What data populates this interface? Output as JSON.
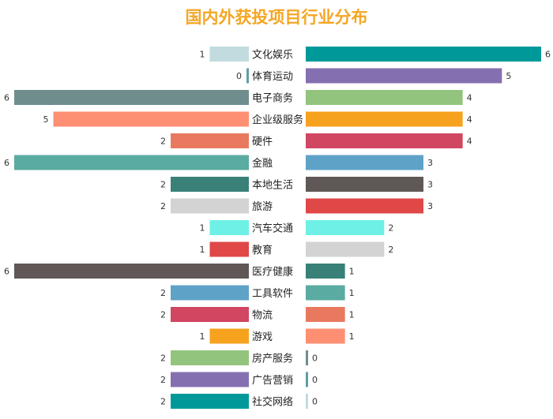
{
  "chart_data": {
    "type": "bar",
    "title": "国内外获投项目行业分布",
    "left_series": {
      "categories": [
        "文化娱乐",
        "体育运动",
        "电子商务",
        "企业级服务",
        "硬件",
        "金融",
        "本地生活",
        "旅游",
        "汽车交通",
        "教育",
        "医疗健康",
        "工具软件",
        "物流",
        "游戏",
        "房产服务",
        "广告营销",
        "社交网络"
      ],
      "values": [
        1,
        0,
        6,
        5,
        2,
        6,
        2,
        2,
        1,
        1,
        6,
        2,
        2,
        1,
        2,
        2,
        2
      ],
      "colors": [
        "#c1dbde",
        "#5f9ea0",
        "#708d8d",
        "#fe8f73",
        "#e8795f",
        "#5aaba1",
        "#398078",
        "#d3d3d3",
        "#6ef0e6",
        "#e04848",
        "#5f5856",
        "#5fa2c8",
        "#d14661",
        "#f7a21f",
        "#93c47d",
        "#8470b0",
        "#009999"
      ]
    },
    "right_series": {
      "categories": [
        "文化娱乐",
        "体育运动",
        "电子商务",
        "企业级服务",
        "硬件",
        "金融",
        "本地生活",
        "旅游",
        "汽车交通",
        "教育",
        "医疗健康",
        "工具软件",
        "物流",
        "游戏",
        "房产服务",
        "广告营销",
        "社交网络"
      ],
      "values": [
        6,
        5,
        4,
        4,
        4,
        3,
        3,
        3,
        2,
        2,
        1,
        1,
        1,
        1,
        0,
        0,
        0
      ],
      "colors": [
        "#009999",
        "#8470b0",
        "#93c47d",
        "#f7a21f",
        "#d14661",
        "#5fa2c8",
        "#5f5856",
        "#e04848",
        "#6ef0e6",
        "#d3d3d3",
        "#398078",
        "#5aaba1",
        "#e8795f",
        "#fe8f73",
        "#708d8d",
        "#5f9ea0",
        "#c1dbde"
      ]
    },
    "xlim": [
      0,
      6
    ]
  }
}
